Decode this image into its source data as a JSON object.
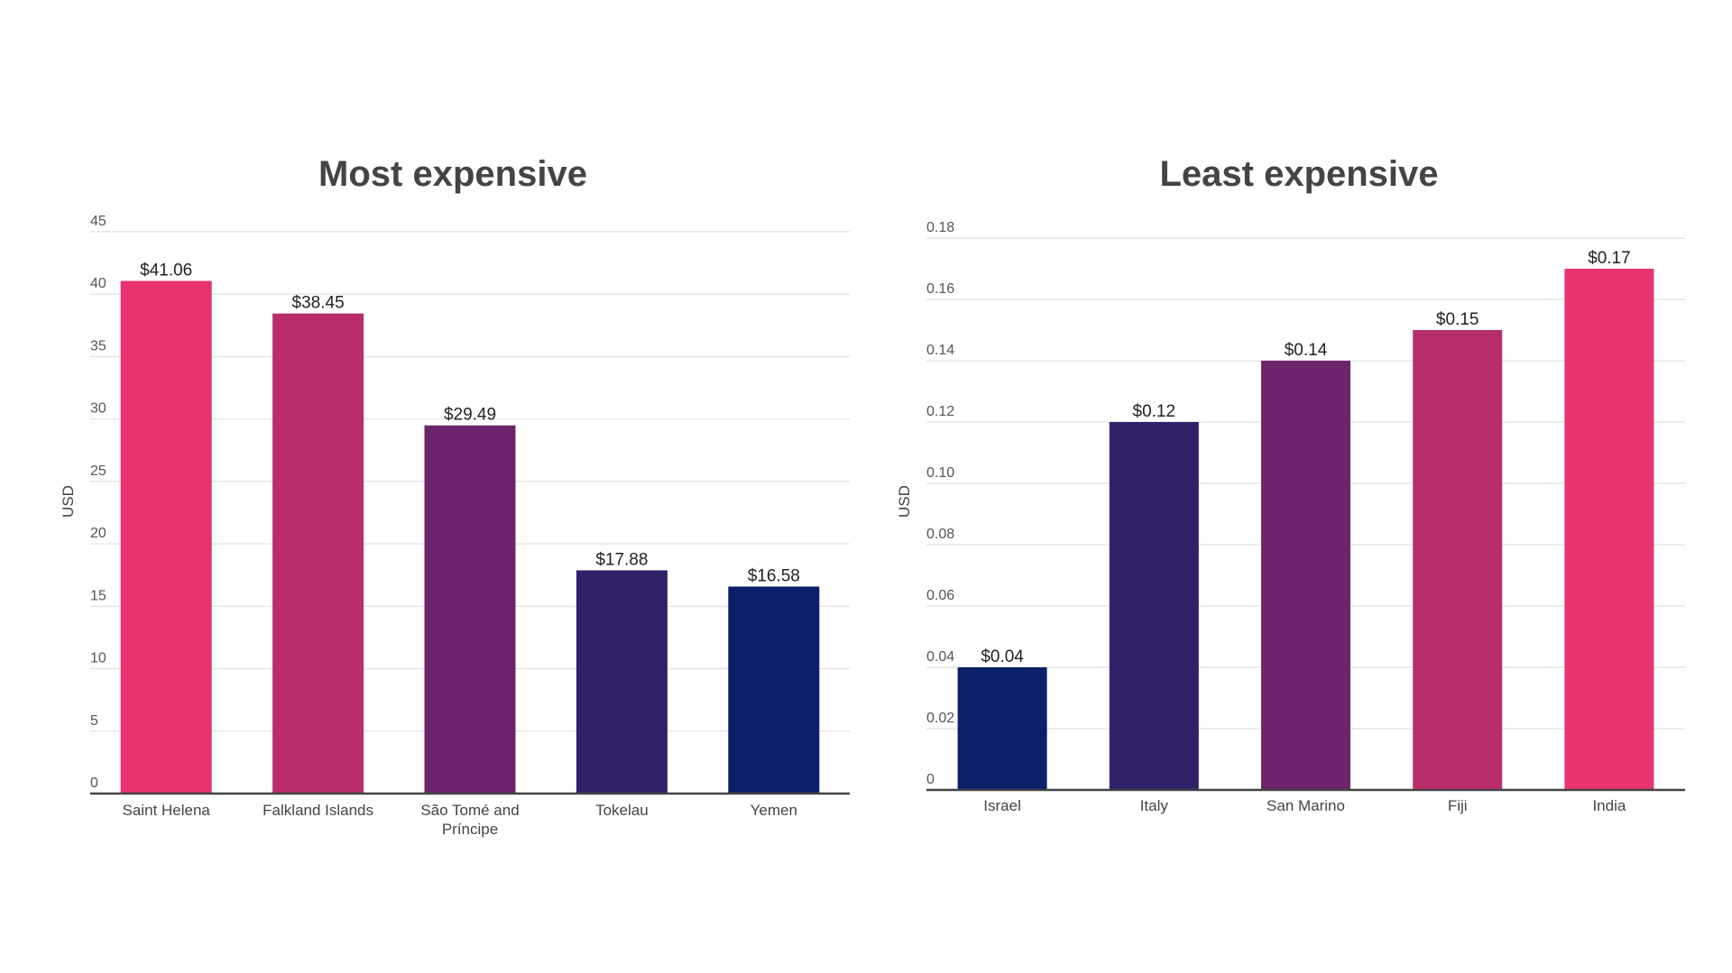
{
  "chart_data": [
    {
      "type": "bar",
      "title": "Most expensive",
      "xlabel": "",
      "ylabel": "USD",
      "ylim": [
        0,
        45
      ],
      "yticks": [
        0,
        5,
        10,
        15,
        20,
        25,
        30,
        35,
        40,
        45
      ],
      "ytick_labels": [
        "0",
        "5",
        "10",
        "15",
        "20",
        "25",
        "30",
        "35",
        "40",
        "45"
      ],
      "categories": [
        "Saint Helena",
        "Falkland Islands",
        "São Tomé and Príncipe",
        "Tokelau",
        "Yemen"
      ],
      "category_lines": [
        [
          "Saint Helena"
        ],
        [
          "Falkland Islands"
        ],
        [
          "São Tomé and",
          "Príncipe"
        ],
        [
          "Tokelau"
        ],
        [
          "Yemen"
        ]
      ],
      "values": [
        41.06,
        38.45,
        29.49,
        17.88,
        16.58
      ],
      "data_labels": [
        "$41.06",
        "$38.45",
        "$29.49",
        "$17.88",
        "$16.58"
      ],
      "bar_colors": [
        "#e8336d",
        "#b82d6a",
        "#6c256b",
        "#30216a",
        "#0b1f6a"
      ],
      "grid": true,
      "legend": "none"
    },
    {
      "type": "bar",
      "title": "Least expensive",
      "xlabel": "",
      "ylabel": "USD",
      "ylim": [
        0,
        0.18
      ],
      "yticks": [
        0,
        0.02,
        0.04,
        0.06,
        0.08,
        0.1,
        0.12,
        0.14,
        0.16,
        0.18
      ],
      "ytick_labels": [
        "0",
        "0.02",
        "0.04",
        "0.06",
        "0.08",
        "0.10",
        "0.12",
        "0.14",
        "0.16",
        "0.18"
      ],
      "categories": [
        "Israel",
        "Italy",
        "San Marino",
        "Fiji",
        "India"
      ],
      "category_lines": [
        [
          "Israel"
        ],
        [
          "Italy"
        ],
        [
          "San Marino"
        ],
        [
          "Fiji"
        ],
        [
          "India"
        ]
      ],
      "values": [
        0.04,
        0.12,
        0.14,
        0.15,
        0.17
      ],
      "data_labels": [
        "$0.04",
        "$0.12",
        "$0.14",
        "$0.15",
        "$0.17"
      ],
      "bar_colors": [
        "#0b1f6a",
        "#30216a",
        "#6c256b",
        "#b82d6a",
        "#e8336d"
      ],
      "grid": true,
      "legend": "none"
    }
  ]
}
